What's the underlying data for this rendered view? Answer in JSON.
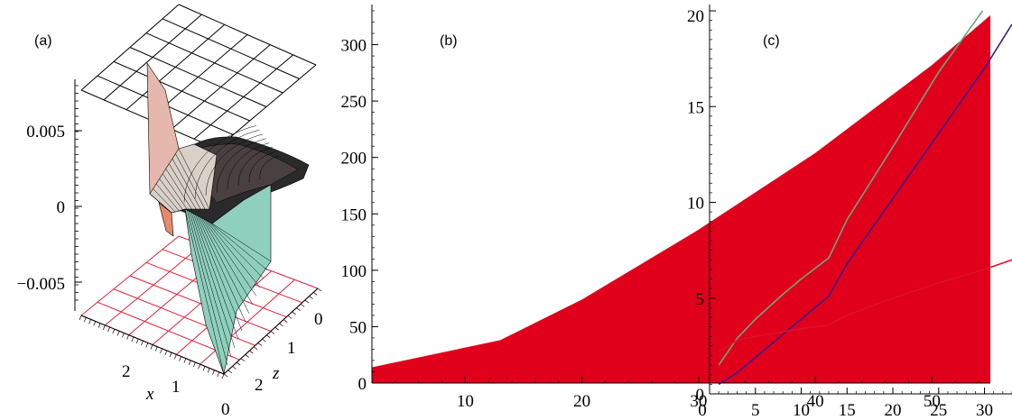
{
  "chart_data": [
    {
      "type": "surface3d",
      "panel_label": "(a)",
      "z_ticks": [
        "0.005",
        "0",
        "−0.005"
      ],
      "x_axis_label": "x",
      "x_ticks": [
        "2",
        "1",
        "0"
      ],
      "z_axis_label": "z",
      "z_depth_ticks": [
        "2",
        "1",
        "0"
      ],
      "colors": {
        "top_plane": "#000000",
        "bottom_plane": "#e0203a",
        "surface_light": "#8fd3c0",
        "surface_pink": "#e8b4aa",
        "surface_dark": "#1a1a1a"
      }
    },
    {
      "type": "area",
      "panel_label": "(b)",
      "x": [
        2,
        13,
        20,
        30,
        40,
        50,
        55
      ],
      "upper": [
        14,
        38,
        74,
        136,
        204,
        282,
        326
      ],
      "lower": [
        0,
        0,
        0,
        0,
        0,
        0,
        0
      ],
      "xlim": [
        2,
        55
      ],
      "ylim": [
        0,
        330
      ],
      "x_ticks": [
        10,
        20,
        30,
        40,
        50
      ],
      "y_ticks": [
        0,
        50,
        100,
        150,
        200,
        250,
        300
      ],
      "fill_color": "#e0001b"
    },
    {
      "type": "line",
      "panel_label": "(c)",
      "xlim": [
        0,
        33
      ],
      "ylim": [
        0,
        20
      ],
      "x_ticks": [
        0,
        5,
        10,
        15,
        20,
        25,
        30
      ],
      "y_ticks": [
        0,
        5,
        10,
        15,
        20
      ],
      "series": [
        {
          "color": "#6aa87a",
          "x": [
            1,
            3,
            5,
            8,
            10,
            13,
            15,
            20,
            25,
            29.8
          ],
          "y": [
            1.5,
            2.9,
            3.9,
            5.2,
            6.0,
            7.1,
            9.1,
            12.9,
            16.8,
            20.0
          ]
        },
        {
          "color": "#3a1a8a",
          "x": [
            1,
            3,
            5,
            10,
            13,
            15,
            20,
            25,
            30,
            33
          ],
          "y": [
            0.5,
            1.1,
            1.9,
            3.9,
            5.1,
            6.8,
            10.2,
            13.6,
            17.0,
            19.3
          ]
        },
        {
          "color": "#e0102a",
          "x": [
            1,
            3,
            5,
            10,
            13,
            15,
            20,
            25,
            30,
            33
          ],
          "y": [
            2.2,
            2.8,
            3.0,
            3.4,
            3.6,
            4.1,
            5.0,
            5.8,
            6.5,
            7.0
          ]
        }
      ]
    }
  ]
}
